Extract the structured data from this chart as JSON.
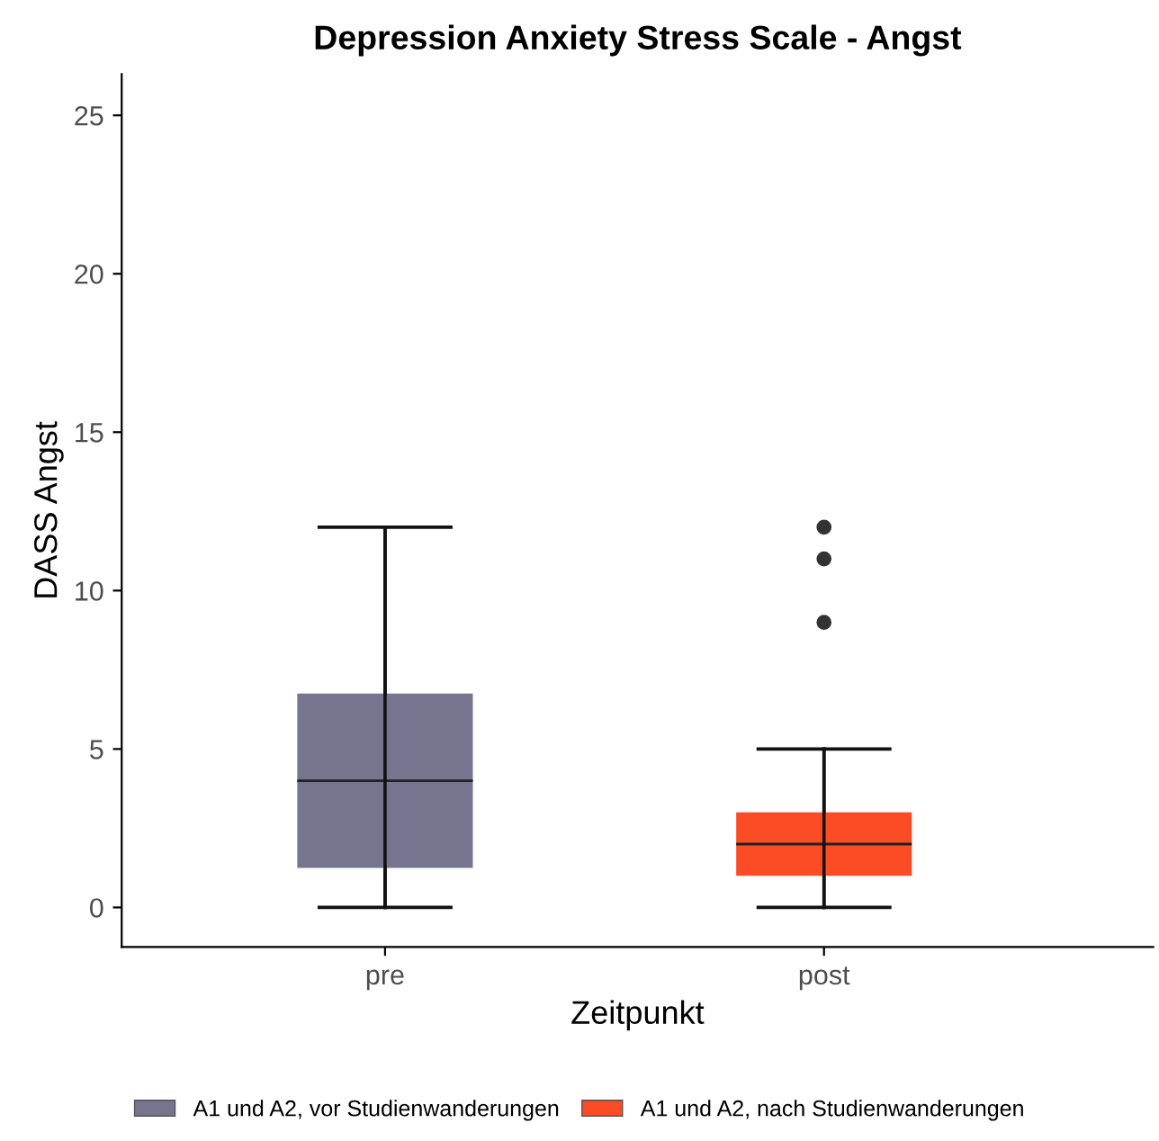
{
  "chart_data": {
    "type": "box",
    "title": "Depression Anxiety Stress Scale - Angst",
    "xlabel": "Zeitpunkt",
    "ylabel": "DASS Angst",
    "categories": [
      "pre",
      "post"
    ],
    "series": [
      {
        "name": "A1 und A2, vor Studienwanderungen",
        "color": "#76758f",
        "boxes": [
          {
            "low": 0,
            "q1": 1.25,
            "median": 4,
            "q3": 6.75,
            "high": 12
          },
          null
        ]
      },
      {
        "name": "A1 und A2, nach Studienwanderungen",
        "color": "#fc4c25",
        "boxes": [
          null,
          {
            "low": 0,
            "q1": 1,
            "median": 2,
            "q3": 3,
            "high": 5,
            "outliers": [
              9,
              11,
              12
            ]
          }
        ]
      }
    ],
    "ylim": [
      -1.25,
      26.3
    ],
    "yticks": [
      0,
      5,
      10,
      15,
      20,
      25
    ],
    "grid": false,
    "legend": "bottom"
  }
}
